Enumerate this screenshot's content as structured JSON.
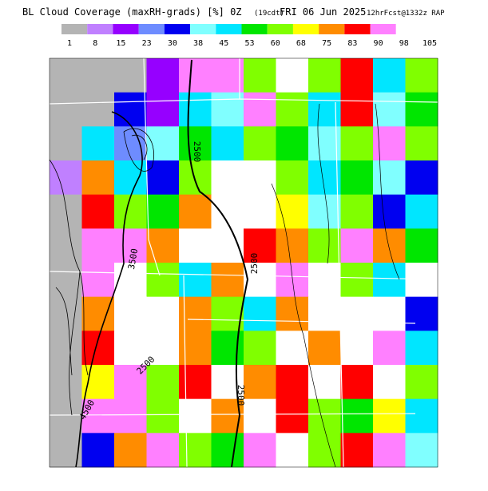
{
  "header": {
    "title": "BL Cloud Coverage (maxRH-grads) [%] 0Z",
    "title_time_local": "(19cdt)",
    "title_date": "FRI 06 Jun 2025",
    "run_info": "12hrFcst@1332z RAP"
  },
  "colorbar": {
    "colors": [
      "#b4b4b4",
      "#c080ff",
      "#9600ff",
      "#6e8cff",
      "#0000f0",
      "#80ffff",
      "#00e6ff",
      "#00e600",
      "#80ff00",
      "#ffff00",
      "#ff8c00",
      "#ff0000",
      "#ff80ff",
      "#ffffff"
    ],
    "ticks": [
      1,
      8,
      15,
      23,
      30,
      38,
      45,
      53,
      60,
      68,
      75,
      83,
      90,
      98,
      105
    ]
  },
  "map": {
    "grid": [
      [
        5,
        5,
        5,
        20,
        90,
        95,
        60,
        100,
        60,
        85,
        50,
        60
      ],
      [
        5,
        5,
        35,
        20,
        50,
        40,
        95,
        60,
        50,
        85,
        40,
        55
      ],
      [
        5,
        50,
        25,
        40,
        55,
        45,
        60,
        55,
        40,
        60,
        90,
        60
      ],
      [
        10,
        80,
        50,
        35,
        60,
        100,
        100,
        60,
        45,
        55,
        40,
        30
      ],
      [
        5,
        85,
        60,
        55,
        80,
        100,
        100,
        70,
        40,
        60,
        35,
        50
      ],
      [
        5,
        90,
        95,
        80,
        100,
        100,
        85,
        75,
        60,
        90,
        80,
        55
      ],
      [
        5,
        95,
        100,
        60,
        45,
        80,
        100,
        90,
        100,
        60,
        50,
        100
      ],
      [
        5,
        80,
        100,
        100,
        75,
        65,
        45,
        75,
        100,
        100,
        100,
        30
      ],
      [
        5,
        85,
        100,
        100,
        80,
        55,
        60,
        100,
        80,
        100,
        90,
        45
      ],
      [
        5,
        70,
        95,
        60,
        85,
        100,
        75,
        85,
        100,
        85,
        100,
        60
      ],
      [
        5,
        95,
        90,
        60,
        100,
        80,
        100,
        85,
        60,
        55,
        70,
        45
      ],
      [
        5,
        35,
        80,
        95,
        60,
        55,
        90,
        100,
        60,
        85,
        90,
        40
      ]
    ],
    "contour_labels": [
      "2500",
      "2500",
      "2500",
      "2500",
      "4500",
      "3500"
    ]
  }
}
